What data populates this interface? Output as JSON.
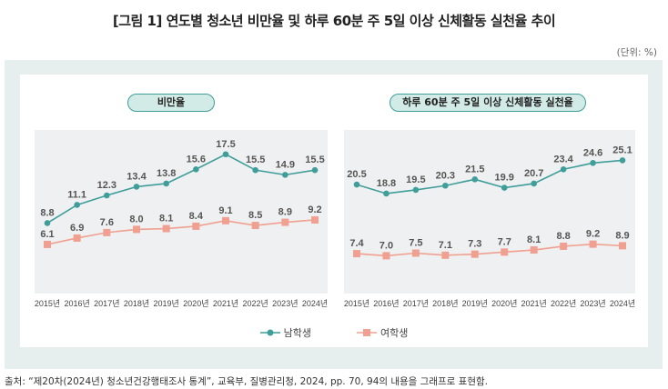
{
  "title": "[그림 1] 연도별 청소년 비만율 및 하루 60분 주 5일 이상 신체활동 실천율 추이",
  "unit": "(단위: %)",
  "source": "출처: “제20차(2024년) 청소년건강행태조사 통계”, 교육부, 질병관리청, 2024, pp. 70, 94의 내용을 그래프로 표현함.",
  "colors": {
    "male": "#3f9e9a",
    "female": "#f0a090"
  },
  "legend": [
    {
      "name": "남학생",
      "marker": "circle"
    },
    {
      "name": "여학생",
      "marker": "square"
    }
  ],
  "chart_data": [
    {
      "type": "line",
      "title": "비만율",
      "categories": [
        "2015년",
        "2016년",
        "2017년",
        "2018년",
        "2019년",
        "2020년",
        "2021년",
        "2022년",
        "2023년",
        "2024년"
      ],
      "ylim": [
        0,
        20
      ],
      "series": [
        {
          "name": "남학생",
          "values": [
            8.8,
            11.1,
            12.3,
            13.4,
            13.8,
            15.6,
            17.5,
            15.5,
            14.9,
            15.5
          ]
        },
        {
          "name": "여학생",
          "values": [
            6.1,
            6.9,
            7.6,
            8.0,
            8.1,
            8.4,
            9.1,
            8.5,
            8.9,
            9.2
          ]
        }
      ]
    },
    {
      "type": "line",
      "title": "하루 60분 주 5일 이상 신체활동 실천율",
      "categories": [
        "2015년",
        "2016년",
        "2017년",
        "2018년",
        "2019년",
        "2020년",
        "2021년",
        "2022년",
        "2023년",
        "2024년"
      ],
      "ylim": [
        0,
        30
      ],
      "series": [
        {
          "name": "남학생",
          "values": [
            20.5,
            18.8,
            19.5,
            20.3,
            21.5,
            19.9,
            20.7,
            23.4,
            24.6,
            25.1
          ]
        },
        {
          "name": "여학생",
          "values": [
            7.4,
            7.0,
            7.5,
            7.1,
            7.3,
            7.7,
            8.1,
            8.8,
            9.2,
            8.9
          ]
        }
      ]
    }
  ]
}
